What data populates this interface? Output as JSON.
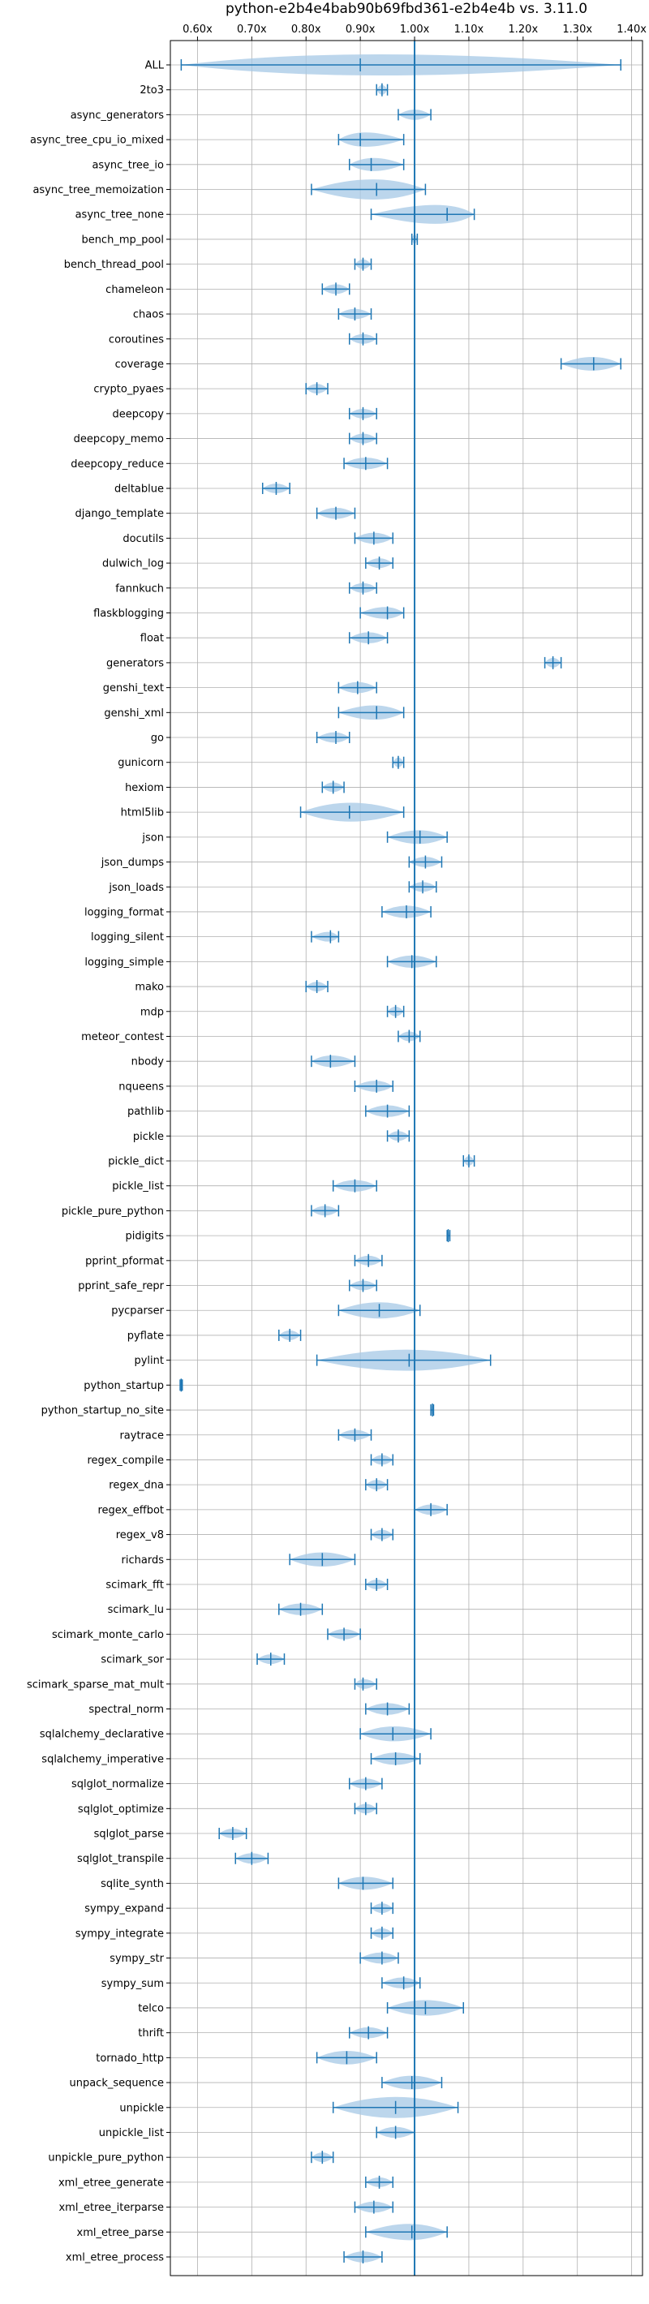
{
  "chart_data": {
    "type": "violin",
    "title": "python-e2b4e4bab90b69fbd361-e2b4e4b vs. 3.11.0",
    "xlabel": "",
    "ylabel": "",
    "xlim": [
      0.55,
      1.42
    ],
    "x_tick_values": [
      0.6,
      0.7,
      0.8,
      0.9,
      1.0,
      1.1,
      1.2,
      1.3,
      1.4
    ],
    "x_tick_labels": [
      "0.60x",
      "0.70x",
      "0.80x",
      "0.90x",
      "1.00x",
      "1.10x",
      "1.20x",
      "1.30x",
      "1.40x"
    ],
    "x_axis_position": "top",
    "grid": true,
    "reference_line": 1.0,
    "colors": {
      "violin": "#a6c8e6",
      "line": "#1f77b4"
    },
    "benchmarks": [
      {
        "name": "ALL",
        "min": 0.57,
        "max": 1.38,
        "median": 0.9
      },
      {
        "name": "2to3",
        "min": 0.93,
        "max": 0.95,
        "median": 0.94
      },
      {
        "name": "async_generators",
        "min": 0.97,
        "max": 1.03,
        "median": 1.0
      },
      {
        "name": "async_tree_cpu_io_mixed",
        "min": 0.86,
        "max": 0.98,
        "median": 0.9
      },
      {
        "name": "async_tree_io",
        "min": 0.88,
        "max": 0.98,
        "median": 0.92
      },
      {
        "name": "async_tree_memoization",
        "min": 0.81,
        "max": 1.02,
        "median": 0.93
      },
      {
        "name": "async_tree_none",
        "min": 0.92,
        "max": 1.11,
        "median": 1.06
      },
      {
        "name": "bench_mp_pool",
        "min": 0.995,
        "max": 1.005,
        "median": 1.0
      },
      {
        "name": "bench_thread_pool",
        "min": 0.89,
        "max": 0.92,
        "median": 0.905
      },
      {
        "name": "chameleon",
        "min": 0.83,
        "max": 0.88,
        "median": 0.855
      },
      {
        "name": "chaos",
        "min": 0.86,
        "max": 0.92,
        "median": 0.89
      },
      {
        "name": "coroutines",
        "min": 0.88,
        "max": 0.93,
        "median": 0.905
      },
      {
        "name": "coverage",
        "min": 1.27,
        "max": 1.38,
        "median": 1.33
      },
      {
        "name": "crypto_pyaes",
        "min": 0.8,
        "max": 0.84,
        "median": 0.82
      },
      {
        "name": "deepcopy",
        "min": 0.88,
        "max": 0.93,
        "median": 0.905
      },
      {
        "name": "deepcopy_memo",
        "min": 0.88,
        "max": 0.93,
        "median": 0.905
      },
      {
        "name": "deepcopy_reduce",
        "min": 0.87,
        "max": 0.95,
        "median": 0.91
      },
      {
        "name": "deltablue",
        "min": 0.72,
        "max": 0.77,
        "median": 0.745
      },
      {
        "name": "django_template",
        "min": 0.82,
        "max": 0.89,
        "median": 0.855
      },
      {
        "name": "docutils",
        "min": 0.89,
        "max": 0.96,
        "median": 0.925
      },
      {
        "name": "dulwich_log",
        "min": 0.91,
        "max": 0.96,
        "median": 0.935
      },
      {
        "name": "fannkuch",
        "min": 0.88,
        "max": 0.93,
        "median": 0.905
      },
      {
        "name": "flaskblogging",
        "min": 0.9,
        "max": 0.98,
        "median": 0.95
      },
      {
        "name": "float",
        "min": 0.88,
        "max": 0.95,
        "median": 0.915
      },
      {
        "name": "generators",
        "min": 1.24,
        "max": 1.27,
        "median": 1.255
      },
      {
        "name": "genshi_text",
        "min": 0.86,
        "max": 0.93,
        "median": 0.895
      },
      {
        "name": "genshi_xml",
        "min": 0.86,
        "max": 0.98,
        "median": 0.93
      },
      {
        "name": "go",
        "min": 0.82,
        "max": 0.88,
        "median": 0.855
      },
      {
        "name": "gunicorn",
        "min": 0.96,
        "max": 0.98,
        "median": 0.97
      },
      {
        "name": "hexiom",
        "min": 0.83,
        "max": 0.87,
        "median": 0.85
      },
      {
        "name": "html5lib",
        "min": 0.79,
        "max": 0.98,
        "median": 0.88
      },
      {
        "name": "json",
        "min": 0.95,
        "max": 1.06,
        "median": 1.01
      },
      {
        "name": "json_dumps",
        "min": 0.99,
        "max": 1.05,
        "median": 1.02
      },
      {
        "name": "json_loads",
        "min": 0.99,
        "max": 1.04,
        "median": 1.015
      },
      {
        "name": "logging_format",
        "min": 0.94,
        "max": 1.03,
        "median": 0.985
      },
      {
        "name": "logging_silent",
        "min": 0.81,
        "max": 0.86,
        "median": 0.845
      },
      {
        "name": "logging_simple",
        "min": 0.95,
        "max": 1.04,
        "median": 0.995
      },
      {
        "name": "mako",
        "min": 0.8,
        "max": 0.84,
        "median": 0.82
      },
      {
        "name": "mdp",
        "min": 0.95,
        "max": 0.98,
        "median": 0.965
      },
      {
        "name": "meteor_contest",
        "min": 0.97,
        "max": 1.01,
        "median": 0.99
      },
      {
        "name": "nbody",
        "min": 0.81,
        "max": 0.89,
        "median": 0.845
      },
      {
        "name": "nqueens",
        "min": 0.89,
        "max": 0.96,
        "median": 0.93
      },
      {
        "name": "pathlib",
        "min": 0.91,
        "max": 0.99,
        "median": 0.95
      },
      {
        "name": "pickle",
        "min": 0.95,
        "max": 0.99,
        "median": 0.97
      },
      {
        "name": "pickle_dict",
        "min": 1.09,
        "max": 1.11,
        "median": 1.1
      },
      {
        "name": "pickle_list",
        "min": 0.85,
        "max": 0.93,
        "median": 0.89
      },
      {
        "name": "pickle_pure_python",
        "min": 0.81,
        "max": 0.86,
        "median": 0.835
      },
      {
        "name": "pidigits",
        "min": 1.06,
        "max": 1.065,
        "median": 1.062
      },
      {
        "name": "pprint_pformat",
        "min": 0.89,
        "max": 0.94,
        "median": 0.915
      },
      {
        "name": "pprint_safe_repr",
        "min": 0.88,
        "max": 0.93,
        "median": 0.905
      },
      {
        "name": "pycparser",
        "min": 0.86,
        "max": 1.01,
        "median": 0.935
      },
      {
        "name": "pyflate",
        "min": 0.75,
        "max": 0.79,
        "median": 0.77
      },
      {
        "name": "pylint",
        "min": 0.82,
        "max": 1.14,
        "median": 0.99
      },
      {
        "name": "python_startup",
        "min": 0.568,
        "max": 0.572,
        "median": 0.57
      },
      {
        "name": "python_startup_no_site",
        "min": 1.03,
        "max": 1.035,
        "median": 1.033
      },
      {
        "name": "raytrace",
        "min": 0.86,
        "max": 0.92,
        "median": 0.89
      },
      {
        "name": "regex_compile",
        "min": 0.92,
        "max": 0.96,
        "median": 0.94
      },
      {
        "name": "regex_dna",
        "min": 0.91,
        "max": 0.95,
        "median": 0.93
      },
      {
        "name": "regex_effbot",
        "min": 1.0,
        "max": 1.06,
        "median": 1.03
      },
      {
        "name": "regex_v8",
        "min": 0.92,
        "max": 0.96,
        "median": 0.94
      },
      {
        "name": "richards",
        "min": 0.77,
        "max": 0.89,
        "median": 0.83
      },
      {
        "name": "scimark_fft",
        "min": 0.91,
        "max": 0.95,
        "median": 0.93
      },
      {
        "name": "scimark_lu",
        "min": 0.75,
        "max": 0.83,
        "median": 0.79
      },
      {
        "name": "scimark_monte_carlo",
        "min": 0.84,
        "max": 0.9,
        "median": 0.87
      },
      {
        "name": "scimark_sor",
        "min": 0.71,
        "max": 0.76,
        "median": 0.735
      },
      {
        "name": "scimark_sparse_mat_mult",
        "min": 0.89,
        "max": 0.93,
        "median": 0.905
      },
      {
        "name": "spectral_norm",
        "min": 0.91,
        "max": 0.99,
        "median": 0.95
      },
      {
        "name": "sqlalchemy_declarative",
        "min": 0.9,
        "max": 1.03,
        "median": 0.96
      },
      {
        "name": "sqlalchemy_imperative",
        "min": 0.92,
        "max": 1.01,
        "median": 0.965
      },
      {
        "name": "sqlglot_normalize",
        "min": 0.88,
        "max": 0.94,
        "median": 0.91
      },
      {
        "name": "sqlglot_optimize",
        "min": 0.89,
        "max": 0.93,
        "median": 0.91
      },
      {
        "name": "sqlglot_parse",
        "min": 0.64,
        "max": 0.69,
        "median": 0.665
      },
      {
        "name": "sqlglot_transpile",
        "min": 0.67,
        "max": 0.73,
        "median": 0.7
      },
      {
        "name": "sqlite_synth",
        "min": 0.86,
        "max": 0.96,
        "median": 0.905
      },
      {
        "name": "sympy_expand",
        "min": 0.92,
        "max": 0.96,
        "median": 0.94
      },
      {
        "name": "sympy_integrate",
        "min": 0.92,
        "max": 0.96,
        "median": 0.94
      },
      {
        "name": "sympy_str",
        "min": 0.9,
        "max": 0.97,
        "median": 0.94
      },
      {
        "name": "sympy_sum",
        "min": 0.94,
        "max": 1.01,
        "median": 0.98
      },
      {
        "name": "telco",
        "min": 0.95,
        "max": 1.09,
        "median": 1.02
      },
      {
        "name": "thrift",
        "min": 0.88,
        "max": 0.95,
        "median": 0.915
      },
      {
        "name": "tornado_http",
        "min": 0.82,
        "max": 0.93,
        "median": 0.875
      },
      {
        "name": "unpack_sequence",
        "min": 0.94,
        "max": 1.05,
        "median": 0.995
      },
      {
        "name": "unpickle",
        "min": 0.85,
        "max": 1.08,
        "median": 0.965
      },
      {
        "name": "unpickle_list",
        "min": 0.93,
        "max": 1.0,
        "median": 0.965
      },
      {
        "name": "unpickle_pure_python",
        "min": 0.81,
        "max": 0.85,
        "median": 0.83
      },
      {
        "name": "xml_etree_generate",
        "min": 0.91,
        "max": 0.96,
        "median": 0.935
      },
      {
        "name": "xml_etree_iterparse",
        "min": 0.89,
        "max": 0.96,
        "median": 0.925
      },
      {
        "name": "xml_etree_parse",
        "min": 0.91,
        "max": 1.06,
        "median": 0.995
      },
      {
        "name": "xml_etree_process",
        "min": 0.87,
        "max": 0.94,
        "median": 0.905
      }
    ]
  }
}
